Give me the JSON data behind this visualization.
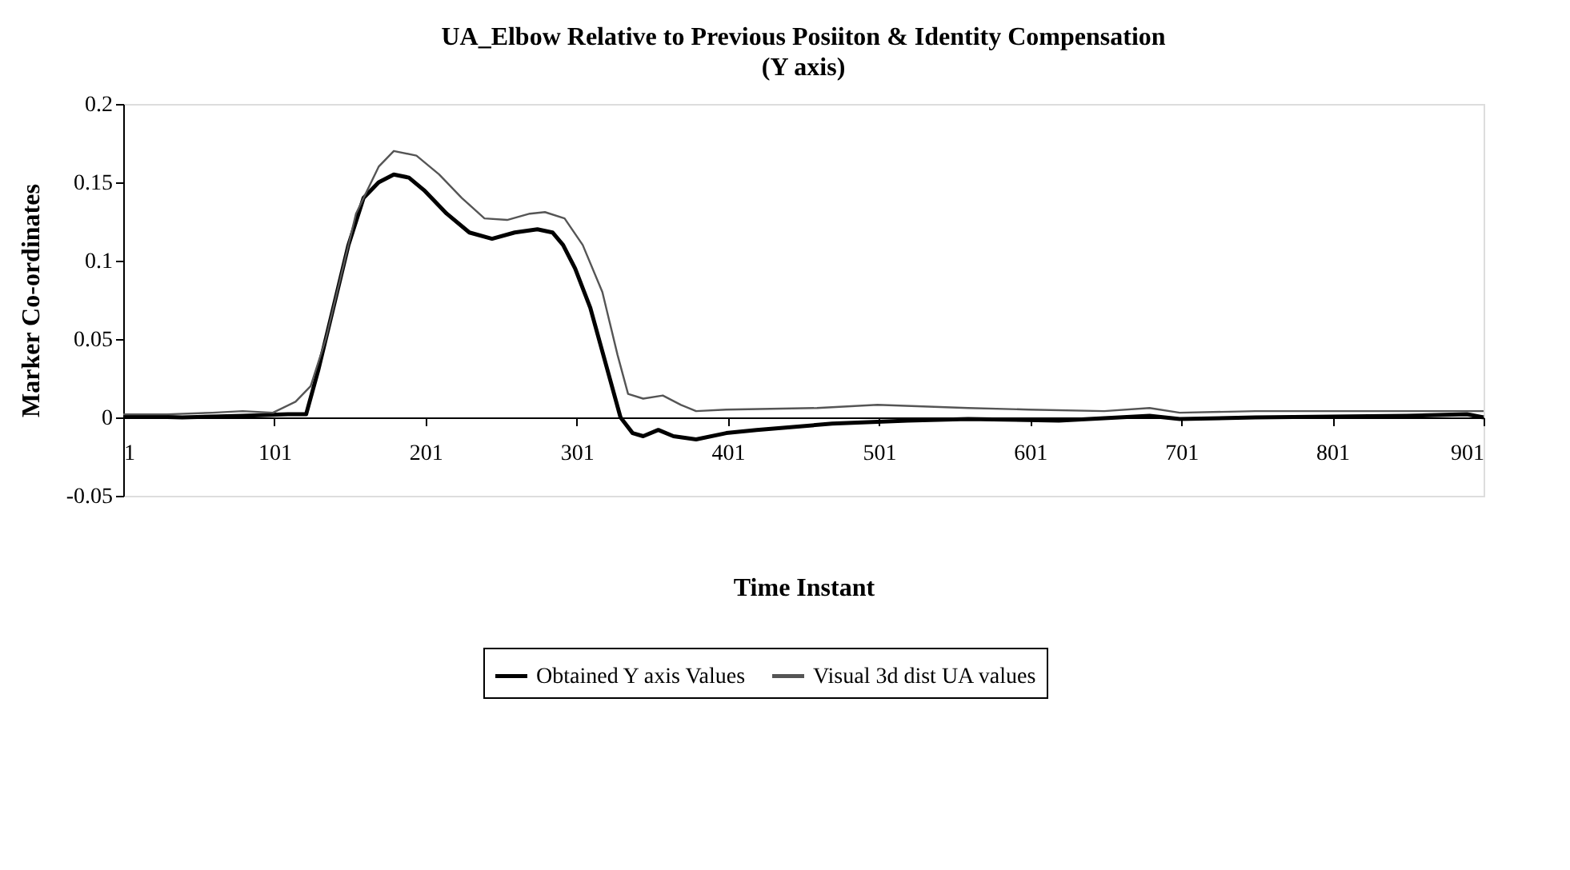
{
  "chart_data": {
    "type": "line",
    "title": "UA_Elbow Relative to Previous Posiiton & Identity Compensation",
    "subtitle": "(Y axis)",
    "xlabel": "Time Instant",
    "ylabel": "Marker Co-ordinates",
    "xlim": [
      1,
      901
    ],
    "xticks": [
      1,
      101,
      201,
      301,
      401,
      501,
      601,
      701,
      801,
      901
    ],
    "ylim": [
      -0.05,
      0.2
    ],
    "yticks": [
      -0.05,
      0,
      0.05,
      0.1,
      0.15,
      0.2
    ],
    "grid": false,
    "legend": "bottom",
    "line_style": "solid",
    "marker": "none",
    "series": [
      {
        "name": "Obtained Y axis Values",
        "color": "#000000",
        "x": [
          1,
          40,
          80,
          110,
          122,
          130,
          140,
          150,
          160,
          170,
          180,
          190,
          200,
          215,
          230,
          245,
          260,
          275,
          285,
          292,
          300,
          310,
          320,
          330,
          338,
          345,
          355,
          365,
          380,
          400,
          420,
          470,
          520,
          560,
          620,
          680,
          700,
          750,
          850,
          890,
          901
        ],
        "values": [
          0.001,
          0.0,
          0.001,
          0.002,
          0.002,
          0.03,
          0.07,
          0.11,
          0.14,
          0.15,
          0.155,
          0.153,
          0.145,
          0.13,
          0.118,
          0.114,
          0.118,
          0.12,
          0.118,
          0.11,
          0.095,
          0.07,
          0.035,
          0.0,
          -0.01,
          -0.012,
          -0.008,
          -0.012,
          -0.014,
          -0.01,
          -0.008,
          -0.004,
          -0.002,
          -0.001,
          -0.002,
          0.001,
          -0.001,
          0.0,
          0.001,
          0.002,
          0.0
        ]
      },
      {
        "name": "Visual 3d dist UA values",
        "color": "#555555",
        "x": [
          1,
          30,
          60,
          80,
          100,
          115,
          125,
          135,
          145,
          155,
          170,
          180,
          195,
          210,
          225,
          240,
          255,
          270,
          280,
          293,
          305,
          318,
          328,
          335,
          345,
          358,
          370,
          380,
          400,
          460,
          500,
          530,
          560,
          600,
          650,
          680,
          700,
          750,
          901
        ],
        "values": [
          0.002,
          0.002,
          0.003,
          0.004,
          0.003,
          0.01,
          0.02,
          0.05,
          0.09,
          0.13,
          0.16,
          0.17,
          0.167,
          0.155,
          0.14,
          0.127,
          0.126,
          0.13,
          0.131,
          0.127,
          0.11,
          0.08,
          0.04,
          0.015,
          0.012,
          0.014,
          0.008,
          0.004,
          0.005,
          0.006,
          0.008,
          0.007,
          0.006,
          0.005,
          0.004,
          0.006,
          0.003,
          0.004,
          0.004
        ]
      }
    ]
  }
}
